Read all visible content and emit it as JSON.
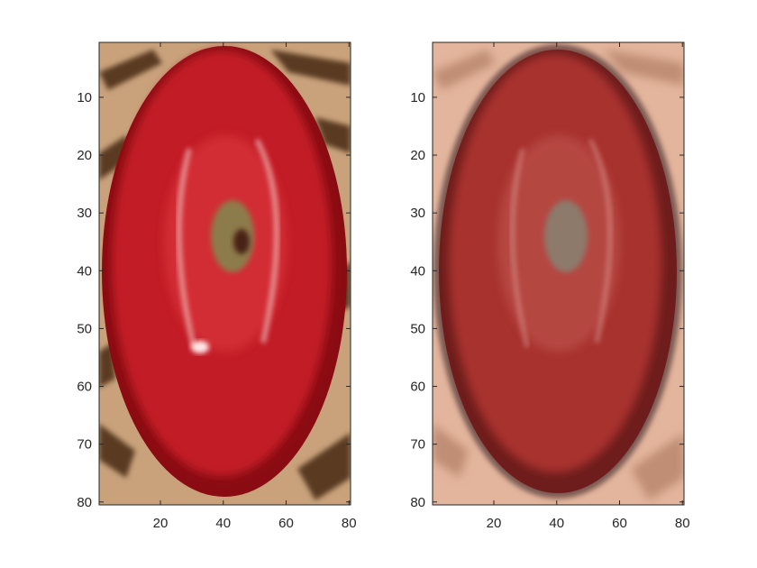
{
  "chart_data": [
    {
      "type": "image",
      "panel": "left",
      "content": "apple",
      "xticks": [
        20,
        40,
        60,
        80
      ],
      "yticks": [
        10,
        20,
        30,
        40,
        50,
        60,
        70,
        80
      ],
      "xlim": [
        0.5,
        80.5
      ],
      "ylim": [
        0.5,
        80.5
      ],
      "y_direction": "reverse",
      "colors": {
        "background": "#c9a27c",
        "weave_dark": "#5a3a22",
        "apple": "#c21f26",
        "apple_dark": "#8a0c12",
        "apple_light": "#d9343a",
        "core": "#8d7b4b"
      }
    },
    {
      "type": "image",
      "panel": "right",
      "content": "apple",
      "xticks": [
        20,
        40,
        60,
        80
      ],
      "yticks": [
        10,
        20,
        30,
        40,
        50,
        60,
        70,
        80
      ],
      "xlim": [
        0.5,
        80.5
      ],
      "ylim": [
        0.5,
        80.5
      ],
      "y_direction": "reverse",
      "colors": {
        "background": "#e3b59c",
        "weave_dark": "#c08d74",
        "apple": "#a8312d",
        "apple_dark": "#6e1d1c",
        "apple_light": "#bf5450",
        "core": "#8d7a6a"
      }
    }
  ]
}
